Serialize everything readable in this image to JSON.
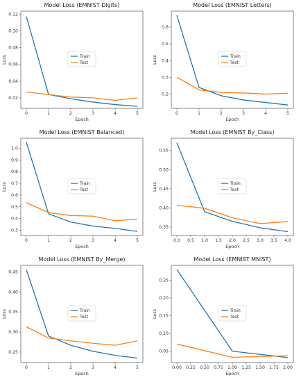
{
  "colors": {
    "train": "#1f77b4",
    "test": "#ff7f0e",
    "axis": "#555555"
  },
  "chart_data": [
    {
      "type": "line",
      "title": "Model Loss (EMNIST Digits)",
      "xlabel": "Epoch",
      "ylabel": "Loss",
      "x": [
        0,
        1,
        2,
        3,
        4,
        5
      ],
      "xticks": [
        "0",
        "1",
        "2",
        "3",
        "4",
        "5"
      ],
      "xlim": [
        -0.25,
        5.25
      ],
      "ylim": [
        0.0075,
        0.1235
      ],
      "yticks": [
        0.02,
        0.04,
        0.06,
        0.08,
        0.1,
        0.12
      ],
      "ytick_labels": [
        "0.02",
        "0.04",
        "0.06",
        "0.08",
        "0.10",
        "0.12"
      ],
      "legend": "center",
      "series": [
        {
          "name": "Train",
          "values": [
            0.117,
            0.024,
            0.019,
            0.015,
            0.012,
            0.01
          ]
        },
        {
          "name": "Test",
          "values": [
            0.027,
            0.024,
            0.021,
            0.02,
            0.017,
            0.02
          ]
        }
      ]
    },
    {
      "type": "line",
      "title": "Model Loss (EMNIST Letters)",
      "xlabel": "Epoch",
      "ylabel": "Loss",
      "x": [
        0,
        1,
        2,
        3,
        4,
        5
      ],
      "xticks": [
        "0",
        "1",
        "2",
        "3",
        "4",
        "5"
      ],
      "xlim": [
        -0.25,
        5.25
      ],
      "ylim": [
        0.115,
        0.695
      ],
      "yticks": [
        0.2,
        0.3,
        0.4,
        0.5,
        0.6
      ],
      "ytick_labels": [
        "0.2",
        "0.3",
        "0.4",
        "0.5",
        "0.6"
      ],
      "legend": "center",
      "series": [
        {
          "name": "Train",
          "values": [
            0.67,
            0.24,
            0.19,
            0.165,
            0.15,
            0.135
          ]
        },
        {
          "name": "Test",
          "values": [
            0.3,
            0.225,
            0.21,
            0.207,
            0.2,
            0.205
          ]
        }
      ]
    },
    {
      "type": "line",
      "title": "Model Loss (EMNIST Balanced)",
      "xlabel": "Epoch",
      "ylabel": "Loss",
      "x": [
        0,
        1,
        2,
        3,
        4,
        5
      ],
      "xticks": [
        "0",
        "1",
        "2",
        "3",
        "4",
        "5"
      ],
      "xlim": [
        -0.25,
        5.25
      ],
      "ylim": [
        0.255,
        1.085
      ],
      "yticks": [
        0.3,
        0.4,
        0.5,
        0.6,
        0.7,
        0.8,
        0.9,
        1.0
      ],
      "ytick_labels": [
        "0.3",
        "0.4",
        "0.5",
        "0.6",
        "0.7",
        "0.8",
        "0.9",
        "1.0"
      ],
      "legend": "center",
      "series": [
        {
          "name": "Train",
          "values": [
            1.05,
            0.44,
            0.37,
            0.335,
            0.315,
            0.29
          ]
        },
        {
          "name": "Test",
          "values": [
            0.535,
            0.45,
            0.425,
            0.42,
            0.38,
            0.395
          ]
        }
      ]
    },
    {
      "type": "line",
      "title": "Model Loss (EMNIST By_Class)",
      "xlabel": "Epoch",
      "ylabel": "Loss",
      "x": [
        0,
        1,
        2,
        3,
        4
      ],
      "xticks": [
        "0.0",
        "0.5",
        "1.0",
        "1.5",
        "2.0",
        "2.5",
        "3.0",
        "3.5",
        "4.0"
      ],
      "xtick_values": [
        0,
        0.5,
        1,
        1.5,
        2,
        2.5,
        3,
        3.5,
        4
      ],
      "xlim": [
        -0.2,
        4.2
      ],
      "ylim": [
        0.328,
        0.582
      ],
      "yticks": [
        0.35,
        0.4,
        0.45,
        0.5,
        0.55
      ],
      "ytick_labels": [
        "0.35",
        "0.40",
        "0.45",
        "0.50",
        "0.55"
      ],
      "legend": "center",
      "series": [
        {
          "name": "Train",
          "values": [
            0.57,
            0.39,
            0.365,
            0.348,
            0.338
          ]
        },
        {
          "name": "Test",
          "values": [
            0.407,
            0.399,
            0.374,
            0.359,
            0.364
          ]
        }
      ]
    },
    {
      "type": "line",
      "title": "Model Loss (EMNIST By_Merge)",
      "xlabel": "Epoch",
      "ylabel": "Loss",
      "x": [
        0,
        1,
        2,
        3,
        4,
        5
      ],
      "xticks": [
        "0",
        "1",
        "2",
        "3",
        "4",
        "5"
      ],
      "xlim": [
        -0.25,
        5.25
      ],
      "ylim": [
        0.224,
        0.466
      ],
      "yticks": [
        0.25,
        0.3,
        0.35,
        0.4,
        0.45
      ],
      "ytick_labels": [
        "0.25",
        "0.30",
        "0.35",
        "0.40",
        "0.45"
      ],
      "legend": "center",
      "series": [
        {
          "name": "Train",
          "values": [
            0.455,
            0.29,
            0.267,
            0.252,
            0.242,
            0.235
          ]
        },
        {
          "name": "Test",
          "values": [
            0.313,
            0.285,
            0.278,
            0.272,
            0.267,
            0.278
          ]
        }
      ]
    },
    {
      "type": "line",
      "title": "Model Loss (EMNIST MNIST)",
      "xlabel": "Epoch",
      "ylabel": "Loss",
      "x": [
        0,
        1,
        2
      ],
      "xticks": [
        "0.00",
        "0.25",
        "0.50",
        "0.75",
        "1.00",
        "1.25",
        "1.50",
        "1.75",
        "2.00"
      ],
      "xtick_values": [
        0,
        0.25,
        0.5,
        0.75,
        1,
        1.25,
        1.5,
        1.75,
        2
      ],
      "xlim": [
        -0.1,
        2.1
      ],
      "ylim": [
        0.018,
        0.292
      ],
      "yticks": [
        0.05,
        0.1,
        0.15,
        0.2,
        0.25
      ],
      "ytick_labels": [
        "0.05",
        "0.10",
        "0.15",
        "0.20",
        "0.25"
      ],
      "legend": "center",
      "series": [
        {
          "name": "Train",
          "values": [
            0.28,
            0.05,
            0.032
          ]
        },
        {
          "name": "Test",
          "values": [
            0.07,
            0.033,
            0.037
          ]
        }
      ]
    }
  ]
}
